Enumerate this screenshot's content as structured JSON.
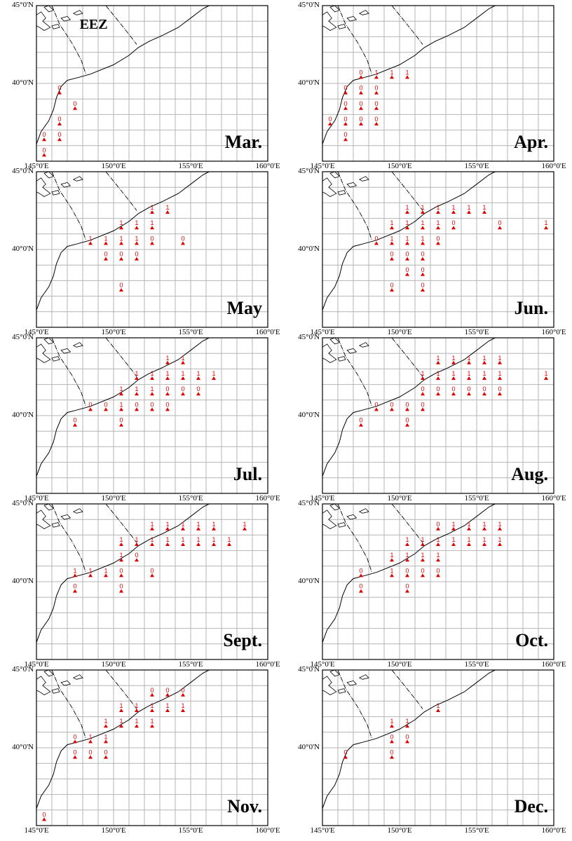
{
  "figure": {
    "colors": {
      "grid": "#b4b4b4",
      "frame": "#000000",
      "coast": "#000000",
      "marker": "#e00000"
    },
    "marker_icon": "triangle-icon",
    "lon_range": [
      145,
      160
    ],
    "lat_range": [
      35,
      45
    ],
    "grid_step_deg": 1,
    "x_ticks": [
      "145°0'E",
      "150°0'E",
      "155°0'E",
      "160°0'E"
    ],
    "y_ticks": [
      "45°0'N",
      "40°0'N"
    ],
    "eez_label": "EEZ",
    "panels": [
      {
        "month": "Mar.",
        "show_eez": true,
        "points": [
          {
            "lon": 146.5,
            "lat": 39.5,
            "v": "0"
          },
          {
            "lon": 147.5,
            "lat": 38.5,
            "v": "0"
          },
          {
            "lon": 146.5,
            "lat": 37.5,
            "v": "0"
          },
          {
            "lon": 146.5,
            "lat": 36.5,
            "v": "0"
          },
          {
            "lon": 145.5,
            "lat": 36.5,
            "v": "0"
          },
          {
            "lon": 145.5,
            "lat": 35.5,
            "v": "0"
          }
        ]
      },
      {
        "month": "Apr.",
        "points": [
          {
            "lon": 147.5,
            "lat": 40.5,
            "v": "0"
          },
          {
            "lon": 148.5,
            "lat": 40.5,
            "v": "1"
          },
          {
            "lon": 149.5,
            "lat": 40.5,
            "v": "1"
          },
          {
            "lon": 150.5,
            "lat": 40.5,
            "v": "1"
          },
          {
            "lon": 146.5,
            "lat": 39.5,
            "v": "0"
          },
          {
            "lon": 147.5,
            "lat": 39.5,
            "v": "0"
          },
          {
            "lon": 148.5,
            "lat": 39.5,
            "v": "0"
          },
          {
            "lon": 146.5,
            "lat": 38.5,
            "v": "0"
          },
          {
            "lon": 147.5,
            "lat": 38.5,
            "v": "0"
          },
          {
            "lon": 148.5,
            "lat": 38.5,
            "v": "0"
          },
          {
            "lon": 145.5,
            "lat": 37.5,
            "v": "0"
          },
          {
            "lon": 146.5,
            "lat": 37.5,
            "v": "0"
          },
          {
            "lon": 147.5,
            "lat": 37.5,
            "v": "0"
          },
          {
            "lon": 148.5,
            "lat": 37.5,
            "v": "0"
          },
          {
            "lon": 146.5,
            "lat": 36.5,
            "v": "0"
          }
        ]
      },
      {
        "month": "May",
        "points": [
          {
            "lon": 152.5,
            "lat": 42.5,
            "v": "1"
          },
          {
            "lon": 153.5,
            "lat": 42.5,
            "v": "1"
          },
          {
            "lon": 150.5,
            "lat": 41.5,
            "v": "1"
          },
          {
            "lon": 151.5,
            "lat": 41.5,
            "v": "1"
          },
          {
            "lon": 152.5,
            "lat": 41.5,
            "v": "1"
          },
          {
            "lon": 148.5,
            "lat": 40.5,
            "v": "1"
          },
          {
            "lon": 149.5,
            "lat": 40.5,
            "v": "1"
          },
          {
            "lon": 150.5,
            "lat": 40.5,
            "v": "1"
          },
          {
            "lon": 151.5,
            "lat": 40.5,
            "v": "1"
          },
          {
            "lon": 152.5,
            "lat": 40.5,
            "v": "0"
          },
          {
            "lon": 154.5,
            "lat": 40.5,
            "v": "0"
          },
          {
            "lon": 149.5,
            "lat": 39.5,
            "v": "0"
          },
          {
            "lon": 150.5,
            "lat": 39.5,
            "v": "0"
          },
          {
            "lon": 151.5,
            "lat": 39.5,
            "v": "0"
          },
          {
            "lon": 150.5,
            "lat": 37.5,
            "v": "0"
          }
        ]
      },
      {
        "month": "Jun.",
        "points": [
          {
            "lon": 150.5,
            "lat": 42.5,
            "v": "1"
          },
          {
            "lon": 151.5,
            "lat": 42.5,
            "v": "1"
          },
          {
            "lon": 152.5,
            "lat": 42.5,
            "v": "1"
          },
          {
            "lon": 153.5,
            "lat": 42.5,
            "v": "1"
          },
          {
            "lon": 154.5,
            "lat": 42.5,
            "v": "1"
          },
          {
            "lon": 155.5,
            "lat": 42.5,
            "v": "1"
          },
          {
            "lon": 149.5,
            "lat": 41.5,
            "v": "1"
          },
          {
            "lon": 150.5,
            "lat": 41.5,
            "v": "1"
          },
          {
            "lon": 151.5,
            "lat": 41.5,
            "v": "1"
          },
          {
            "lon": 152.5,
            "lat": 41.5,
            "v": "1"
          },
          {
            "lon": 153.5,
            "lat": 41.5,
            "v": "0"
          },
          {
            "lon": 156.5,
            "lat": 41.5,
            "v": "0"
          },
          {
            "lon": 159.5,
            "lat": 41.5,
            "v": "1"
          },
          {
            "lon": 148.5,
            "lat": 40.5,
            "v": "0"
          },
          {
            "lon": 149.5,
            "lat": 40.5,
            "v": "1"
          },
          {
            "lon": 150.5,
            "lat": 40.5,
            "v": "1"
          },
          {
            "lon": 151.5,
            "lat": 40.5,
            "v": "1"
          },
          {
            "lon": 152.5,
            "lat": 40.5,
            "v": "0"
          },
          {
            "lon": 149.5,
            "lat": 39.5,
            "v": "0"
          },
          {
            "lon": 150.5,
            "lat": 39.5,
            "v": "0"
          },
          {
            "lon": 151.5,
            "lat": 39.5,
            "v": "0"
          },
          {
            "lon": 150.5,
            "lat": 38.5,
            "v": "0"
          },
          {
            "lon": 151.5,
            "lat": 38.5,
            "v": "0"
          },
          {
            "lon": 149.5,
            "lat": 37.5,
            "v": "0"
          },
          {
            "lon": 151.5,
            "lat": 37.5,
            "v": "0"
          }
        ]
      },
      {
        "month": "Jul.",
        "points": [
          {
            "lon": 153.5,
            "lat": 43.5,
            "v": "1"
          },
          {
            "lon": 154.5,
            "lat": 43.5,
            "v": "1"
          },
          {
            "lon": 151.5,
            "lat": 42.5,
            "v": "1"
          },
          {
            "lon": 152.5,
            "lat": 42.5,
            "v": "1"
          },
          {
            "lon": 153.5,
            "lat": 42.5,
            "v": "1"
          },
          {
            "lon": 154.5,
            "lat": 42.5,
            "v": "1"
          },
          {
            "lon": 155.5,
            "lat": 42.5,
            "v": "1"
          },
          {
            "lon": 156.5,
            "lat": 42.5,
            "v": "1"
          },
          {
            "lon": 150.5,
            "lat": 41.5,
            "v": "1"
          },
          {
            "lon": 151.5,
            "lat": 41.5,
            "v": "1"
          },
          {
            "lon": 152.5,
            "lat": 41.5,
            "v": "1"
          },
          {
            "lon": 153.5,
            "lat": 41.5,
            "v": "0"
          },
          {
            "lon": 154.5,
            "lat": 41.5,
            "v": "0"
          },
          {
            "lon": 155.5,
            "lat": 41.5,
            "v": "0"
          },
          {
            "lon": 148.5,
            "lat": 40.5,
            "v": "0"
          },
          {
            "lon": 149.5,
            "lat": 40.5,
            "v": "0"
          },
          {
            "lon": 150.5,
            "lat": 40.5,
            "v": "1"
          },
          {
            "lon": 151.5,
            "lat": 40.5,
            "v": "0"
          },
          {
            "lon": 152.5,
            "lat": 40.5,
            "v": "0"
          },
          {
            "lon": 153.5,
            "lat": 40.5,
            "v": "0"
          },
          {
            "lon": 147.5,
            "lat": 39.5,
            "v": "0"
          },
          {
            "lon": 150.5,
            "lat": 39.5,
            "v": "0"
          }
        ]
      },
      {
        "month": "Aug.",
        "points": [
          {
            "lon": 152.5,
            "lat": 43.5,
            "v": "1"
          },
          {
            "lon": 153.5,
            "lat": 43.5,
            "v": "1"
          },
          {
            "lon": 154.5,
            "lat": 43.5,
            "v": "1"
          },
          {
            "lon": 155.5,
            "lat": 43.5,
            "v": "1"
          },
          {
            "lon": 156.5,
            "lat": 43.5,
            "v": "1"
          },
          {
            "lon": 151.5,
            "lat": 42.5,
            "v": "1"
          },
          {
            "lon": 152.5,
            "lat": 42.5,
            "v": "1"
          },
          {
            "lon": 153.5,
            "lat": 42.5,
            "v": "1"
          },
          {
            "lon": 154.5,
            "lat": 42.5,
            "v": "1"
          },
          {
            "lon": 155.5,
            "lat": 42.5,
            "v": "1"
          },
          {
            "lon": 156.5,
            "lat": 42.5,
            "v": "1"
          },
          {
            "lon": 159.5,
            "lat": 42.5,
            "v": "1"
          },
          {
            "lon": 151.5,
            "lat": 41.5,
            "v": "0"
          },
          {
            "lon": 152.5,
            "lat": 41.5,
            "v": "0"
          },
          {
            "lon": 153.5,
            "lat": 41.5,
            "v": "0"
          },
          {
            "lon": 154.5,
            "lat": 41.5,
            "v": "0"
          },
          {
            "lon": 155.5,
            "lat": 41.5,
            "v": "0"
          },
          {
            "lon": 156.5,
            "lat": 41.5,
            "v": "0"
          },
          {
            "lon": 148.5,
            "lat": 40.5,
            "v": "0"
          },
          {
            "lon": 149.5,
            "lat": 40.5,
            "v": "0"
          },
          {
            "lon": 150.5,
            "lat": 40.5,
            "v": "0"
          },
          {
            "lon": 151.5,
            "lat": 40.5,
            "v": "0"
          },
          {
            "lon": 147.5,
            "lat": 39.5,
            "v": "0"
          },
          {
            "lon": 150.5,
            "lat": 39.5,
            "v": "0"
          }
        ]
      },
      {
        "month": "Sept.",
        "points": [
          {
            "lon": 152.5,
            "lat": 43.5,
            "v": "1"
          },
          {
            "lon": 153.5,
            "lat": 43.5,
            "v": "1"
          },
          {
            "lon": 154.5,
            "lat": 43.5,
            "v": "1"
          },
          {
            "lon": 155.5,
            "lat": 43.5,
            "v": "1"
          },
          {
            "lon": 156.5,
            "lat": 43.5,
            "v": "1"
          },
          {
            "lon": 158.5,
            "lat": 43.5,
            "v": "1"
          },
          {
            "lon": 150.5,
            "lat": 42.5,
            "v": "1"
          },
          {
            "lon": 151.5,
            "lat": 42.5,
            "v": "1"
          },
          {
            "lon": 152.5,
            "lat": 42.5,
            "v": "1"
          },
          {
            "lon": 153.5,
            "lat": 42.5,
            "v": "1"
          },
          {
            "lon": 154.5,
            "lat": 42.5,
            "v": "1"
          },
          {
            "lon": 155.5,
            "lat": 42.5,
            "v": "1"
          },
          {
            "lon": 156.5,
            "lat": 42.5,
            "v": "1"
          },
          {
            "lon": 157.5,
            "lat": 42.5,
            "v": "1"
          },
          {
            "lon": 150.5,
            "lat": 41.5,
            "v": "1"
          },
          {
            "lon": 151.5,
            "lat": 41.5,
            "v": "0"
          },
          {
            "lon": 147.5,
            "lat": 40.5,
            "v": "1"
          },
          {
            "lon": 148.5,
            "lat": 40.5,
            "v": "1"
          },
          {
            "lon": 149.5,
            "lat": 40.5,
            "v": "1"
          },
          {
            "lon": 150.5,
            "lat": 40.5,
            "v": "0"
          },
          {
            "lon": 152.5,
            "lat": 40.5,
            "v": "0"
          },
          {
            "lon": 147.5,
            "lat": 39.5,
            "v": "0"
          },
          {
            "lon": 150.5,
            "lat": 39.5,
            "v": "0"
          }
        ]
      },
      {
        "month": "Oct.",
        "points": [
          {
            "lon": 152.5,
            "lat": 43.5,
            "v": "0"
          },
          {
            "lon": 153.5,
            "lat": 43.5,
            "v": "1"
          },
          {
            "lon": 154.5,
            "lat": 43.5,
            "v": "1"
          },
          {
            "lon": 155.5,
            "lat": 43.5,
            "v": "1"
          },
          {
            "lon": 156.5,
            "lat": 43.5,
            "v": "1"
          },
          {
            "lon": 150.5,
            "lat": 42.5,
            "v": "1"
          },
          {
            "lon": 151.5,
            "lat": 42.5,
            "v": "1"
          },
          {
            "lon": 152.5,
            "lat": 42.5,
            "v": "1"
          },
          {
            "lon": 153.5,
            "lat": 42.5,
            "v": "1"
          },
          {
            "lon": 154.5,
            "lat": 42.5,
            "v": "1"
          },
          {
            "lon": 155.5,
            "lat": 42.5,
            "v": "1"
          },
          {
            "lon": 156.5,
            "lat": 42.5,
            "v": "1"
          },
          {
            "lon": 149.5,
            "lat": 41.5,
            "v": "1"
          },
          {
            "lon": 150.5,
            "lat": 41.5,
            "v": "1"
          },
          {
            "lon": 151.5,
            "lat": 41.5,
            "v": "1"
          },
          {
            "lon": 152.5,
            "lat": 41.5,
            "v": "1"
          },
          {
            "lon": 147.5,
            "lat": 40.5,
            "v": "0"
          },
          {
            "lon": 149.5,
            "lat": 40.5,
            "v": "1"
          },
          {
            "lon": 150.5,
            "lat": 40.5,
            "v": "0"
          },
          {
            "lon": 151.5,
            "lat": 40.5,
            "v": "0"
          },
          {
            "lon": 152.5,
            "lat": 40.5,
            "v": "0"
          },
          {
            "lon": 147.5,
            "lat": 39.5,
            "v": "0"
          },
          {
            "lon": 150.5,
            "lat": 39.5,
            "v": "0"
          }
        ]
      },
      {
        "month": "Nov.",
        "points": [
          {
            "lon": 152.5,
            "lat": 43.5,
            "v": "0"
          },
          {
            "lon": 153.5,
            "lat": 43.5,
            "v": "0"
          },
          {
            "lon": 154.5,
            "lat": 43.5,
            "v": "0"
          },
          {
            "lon": 150.5,
            "lat": 42.5,
            "v": "1"
          },
          {
            "lon": 151.5,
            "lat": 42.5,
            "v": "1"
          },
          {
            "lon": 152.5,
            "lat": 42.5,
            "v": "1"
          },
          {
            "lon": 153.5,
            "lat": 42.5,
            "v": "1"
          },
          {
            "lon": 154.5,
            "lat": 42.5,
            "v": "1"
          },
          {
            "lon": 149.5,
            "lat": 41.5,
            "v": "1"
          },
          {
            "lon": 150.5,
            "lat": 41.5,
            "v": "1"
          },
          {
            "lon": 151.5,
            "lat": 41.5,
            "v": "1"
          },
          {
            "lon": 152.5,
            "lat": 41.5,
            "v": "1"
          },
          {
            "lon": 147.5,
            "lat": 40.5,
            "v": "0"
          },
          {
            "lon": 148.5,
            "lat": 40.5,
            "v": "1"
          },
          {
            "lon": 149.5,
            "lat": 40.5,
            "v": "1"
          },
          {
            "lon": 147.5,
            "lat": 39.5,
            "v": "0"
          },
          {
            "lon": 148.5,
            "lat": 39.5,
            "v": "0"
          },
          {
            "lon": 149.5,
            "lat": 39.5,
            "v": "0"
          },
          {
            "lon": 145.5,
            "lat": 35.5,
            "v": "0"
          }
        ]
      },
      {
        "month": "Dec.",
        "points": [
          {
            "lon": 152.5,
            "lat": 42.5,
            "v": "1"
          },
          {
            "lon": 149.5,
            "lat": 41.5,
            "v": "1"
          },
          {
            "lon": 150.5,
            "lat": 41.5,
            "v": "1"
          },
          {
            "lon": 149.5,
            "lat": 40.5,
            "v": "0"
          },
          {
            "lon": 150.5,
            "lat": 40.5,
            "v": "0"
          },
          {
            "lon": 146.5,
            "lat": 39.5,
            "v": "0"
          },
          {
            "lon": 149.5,
            "lat": 39.5,
            "v": "0"
          }
        ]
      }
    ]
  }
}
